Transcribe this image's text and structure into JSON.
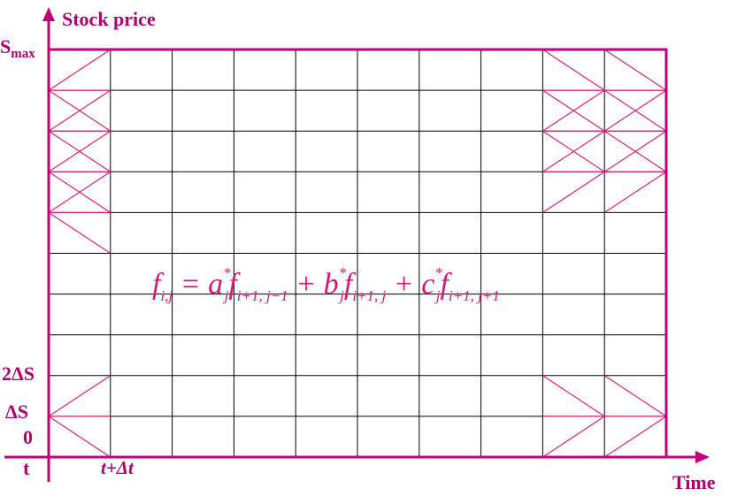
{
  "diagram": {
    "y_axis_title": "Stock price",
    "x_axis_title": "Time",
    "y_labels": {
      "smax_base": "S",
      "smax_sub": "max",
      "two_ds": "2ΔS",
      "ds": "ΔS",
      "zero": "0"
    },
    "x_labels": {
      "t": "t",
      "t_plus_dt": "t+Δt"
    },
    "formula": {
      "lhs_f": "f",
      "lhs_sub": "i,j",
      "eq": " = ",
      "a": "a",
      "a_sub": "j",
      "a_sup": "*",
      "f1": "f",
      "f1_sub": "i+1, j−1",
      "plus1": " + ",
      "b": "b",
      "b_sub": "j",
      "b_sup": "*",
      "f2": "f",
      "f2_sub": "i+1, j",
      "plus2": " + ",
      "c": "c",
      "c_sub": "j",
      "c_sup": "*",
      "f3": "f",
      "f3_sub": "i+1, j+1"
    },
    "grid": {
      "columns": 10,
      "rows": 10
    },
    "colors": {
      "axis": "#c0007a",
      "frame": "#c0007a",
      "grid": "#000000",
      "tree": "#e0207a",
      "formula": "#d6186f"
    }
  }
}
